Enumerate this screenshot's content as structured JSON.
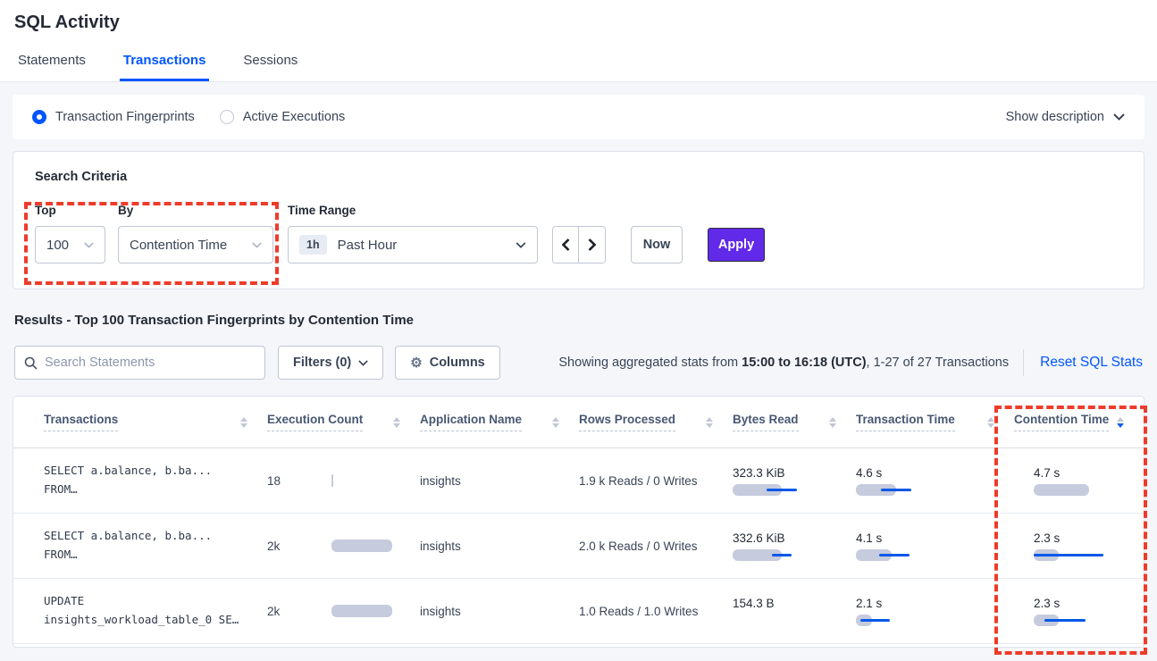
{
  "page_title": "SQL Activity",
  "tabs": {
    "statements": "Statements",
    "transactions": "Transactions",
    "sessions": "Sessions",
    "active": "Transactions"
  },
  "view_toggle": {
    "fingerprints_label": "Transaction Fingerprints",
    "active_executions_label": "Active Executions",
    "selected": "Transaction Fingerprints",
    "show_description_label": "Show description"
  },
  "search_criteria": {
    "title": "Search Criteria",
    "top": {
      "label": "Top",
      "value": "100"
    },
    "by": {
      "label": "By",
      "value": "Contention Time"
    },
    "time_range": {
      "label": "Time Range",
      "badge": "1h",
      "value": "Past Hour"
    },
    "now_label": "Now",
    "apply_label": "Apply"
  },
  "results": {
    "title": "Results - Top 100 Transaction Fingerprints by Contention Time",
    "search_placeholder": "Search Statements",
    "filters_label": "Filters (0)",
    "columns_label": "Columns",
    "stats_prefix": "Showing aggregated stats from ",
    "stats_bold": "15:00 to 16:18 (UTC)",
    "stats_suffix": ", 1-27 of 27 Transactions",
    "reset_label": "Reset SQL Stats"
  },
  "table": {
    "columns": [
      "Transactions",
      "Execution Count",
      "Application Name",
      "Rows Processed",
      "Bytes Read",
      "Transaction Time",
      "Contention Time"
    ],
    "sorted_column": "Contention Time",
    "sort_direction": "desc",
    "rows": [
      {
        "query_line1": "SELECT a.balance, b.ba...",
        "query_line2": "FROM…",
        "execution_count": "18",
        "application_name": "insights",
        "rows_processed": "1.9 k Reads / 0 Writes",
        "bytes_read": "323.3 KiB",
        "transaction_time": "4.6 s",
        "contention_time": "4.7 s",
        "bars": {
          "exec": {
            "g": 2
          },
          "bytes": {
            "g": 55,
            "bx": 38,
            "bw": 34
          },
          "txn": {
            "g": 45,
            "bx": 28,
            "bw": 34
          },
          "cont": {
            "g": 62,
            "bx": 0,
            "bw": 0
          }
        }
      },
      {
        "query_line1": "SELECT a.balance, b.ba...",
        "query_line2": "FROM…",
        "execution_count": "2k",
        "application_name": "insights",
        "rows_processed": "2.0 k Reads / 0 Writes",
        "bytes_read": "332.6 KiB",
        "transaction_time": "4.1 s",
        "contention_time": "2.3 s",
        "bars": {
          "exec": {
            "g": 68
          },
          "bytes": {
            "g": 55,
            "bx": 44,
            "bw": 22
          },
          "txn": {
            "g": 40,
            "bx": 26,
            "bw": 34
          },
          "cont": {
            "g": 28,
            "bx": 0,
            "bw": 78
          }
        }
      },
      {
        "query_line1": "UPDATE",
        "query_line2": "insights_workload_table_0 SE…",
        "execution_count": "2k",
        "application_name": "insights",
        "rows_processed": "1.0 Reads / 1.0 Writes",
        "bytes_read": "154.3 B",
        "transaction_time": "2.1 s",
        "contention_time": "2.3 s",
        "bars": {
          "exec": {
            "g": 68
          },
          "bytes": {
            "g": 0
          },
          "txn": {
            "g": 18,
            "bx": 5,
            "bw": 33
          },
          "cont": {
            "g": 28,
            "bx": 12,
            "bw": 46
          }
        }
      }
    ]
  },
  "annotations": {
    "color": "#ee3b2a",
    "box_1_target": "Top and By search criteria",
    "box_2_target": "Contention Time column"
  },
  "colors": {
    "accent_blue": "#0055ff",
    "apply_purple": "#6129e8",
    "bar_gray": "#c6cbdd",
    "bar_blue": "#0458e8",
    "annotation_red": "#ee3b2a"
  }
}
